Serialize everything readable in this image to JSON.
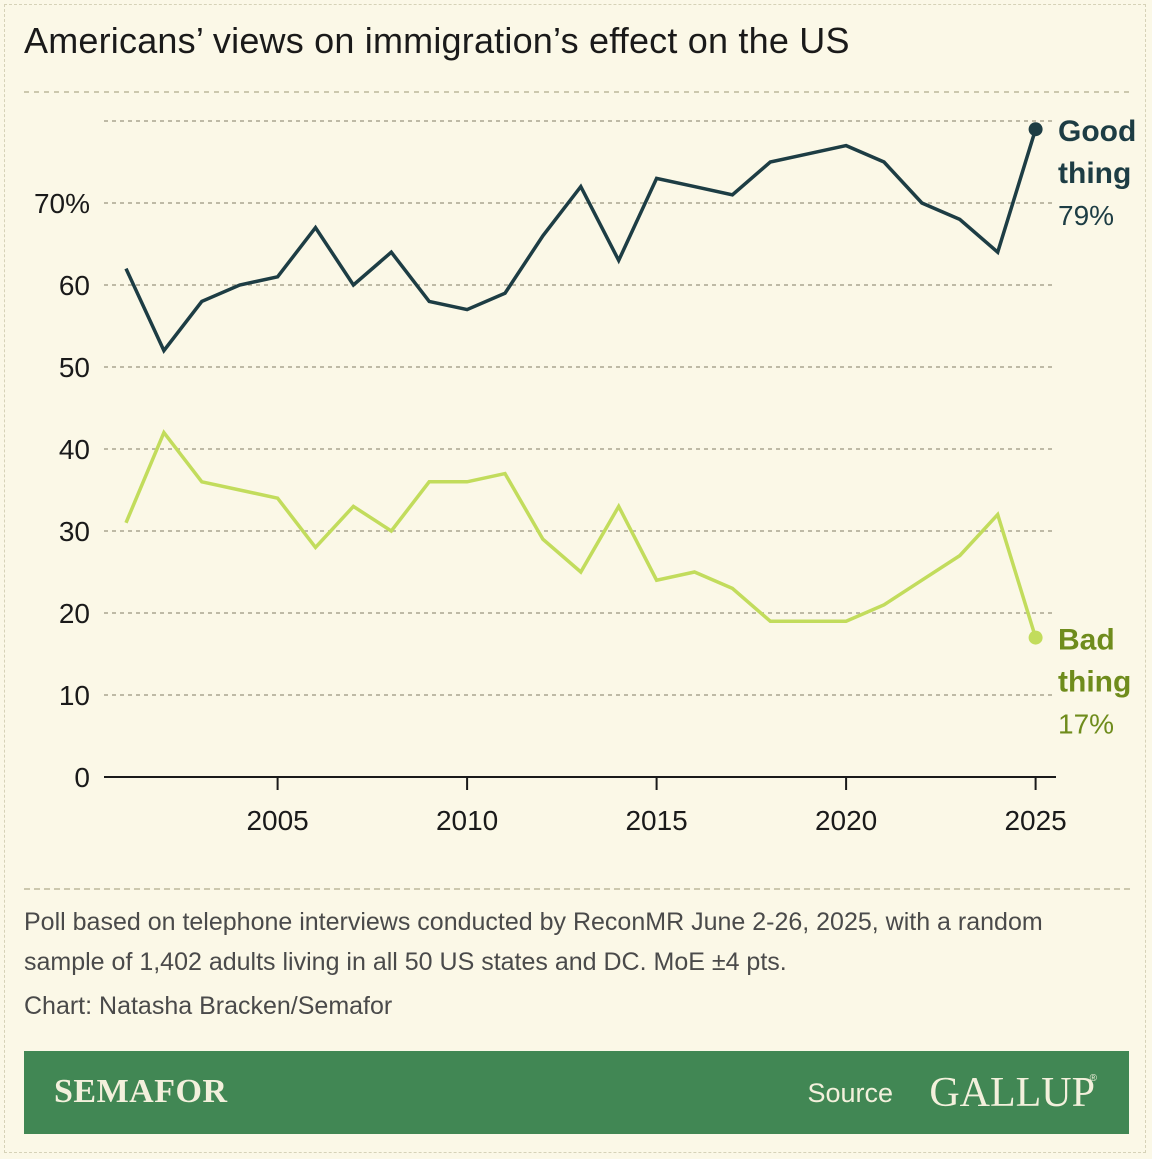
{
  "title": "Americans’ views on immigration’s effect on the US",
  "footnote": "Poll based on telephone interviews conducted by ReconMR June 2-26, 2025, with a random sample of 1,402 adults living in all 50 US states and DC. MoE ±4 pts.",
  "credit": "Chart: Natasha Bracken/Semafor",
  "footer": {
    "brand": "SEMAFOR",
    "source_label": "Source",
    "source_name": "GALLUP",
    "registered_mark": "®",
    "background": "#418754"
  },
  "chart_data": {
    "type": "line",
    "x": [
      2001,
      2002,
      2003,
      2004,
      2005,
      2006,
      2007,
      2008,
      2009,
      2010,
      2011,
      2012,
      2013,
      2014,
      2015,
      2016,
      2017,
      2018,
      2019,
      2020,
      2021,
      2022,
      2023,
      2024,
      2025
    ],
    "series": [
      {
        "name": "Good thing",
        "color": "#1d3d44",
        "values": [
          62,
          52,
          58,
          60,
          61,
          67,
          60,
          64,
          58,
          57,
          59,
          66,
          72,
          63,
          73,
          72,
          71,
          75,
          76,
          77,
          75,
          70,
          68,
          64,
          79
        ],
        "end_label": [
          "Good",
          "thing"
        ],
        "end_value": "79%"
      },
      {
        "name": "Bad thing",
        "color": "#c2dc5c",
        "label_color": "#6f8c1c",
        "values": [
          31,
          42,
          36,
          35,
          34,
          28,
          33,
          30,
          36,
          36,
          37,
          29,
          25,
          33,
          24,
          25,
          23,
          19,
          19,
          19,
          21,
          24,
          27,
          32,
          17
        ],
        "end_label": [
          "Bad",
          "thing"
        ],
        "end_value": "17%"
      }
    ],
    "y_ticks": [
      "0",
      "10",
      "20",
      "30",
      "40",
      "50",
      "60",
      "70%"
    ],
    "y_tick_values": [
      0,
      10,
      20,
      30,
      40,
      50,
      60,
      70
    ],
    "x_ticks": [
      "2005",
      "2010",
      "2015",
      "2020",
      "2025"
    ],
    "x_tick_values": [
      2005,
      2010,
      2015,
      2020,
      2025
    ],
    "xlim": [
      2000.5,
      2025.8
    ],
    "ylim": [
      0,
      85
    ],
    "grid": true,
    "legend": "end-labels"
  }
}
